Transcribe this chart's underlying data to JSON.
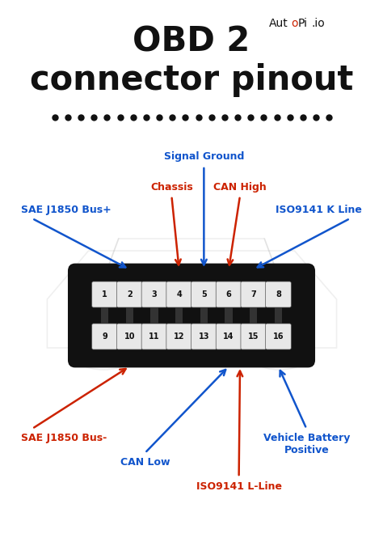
{
  "title_line1": "OBD 2",
  "title_line2": "connector pinout",
  "bg_color": "#ffffff",
  "blue": "#1155cc",
  "red": "#cc2200",
  "dark": "#111111",
  "car_color": "#cccccc",
  "connector_fill": "#111111",
  "pin_fill": "#e8e8e8",
  "top_pins": [
    "1",
    "2",
    "3",
    "4",
    "5",
    "6",
    "7",
    "8"
  ],
  "bot_pins": [
    "9",
    "10",
    "11",
    "12",
    "13",
    "14",
    "15",
    "16"
  ]
}
